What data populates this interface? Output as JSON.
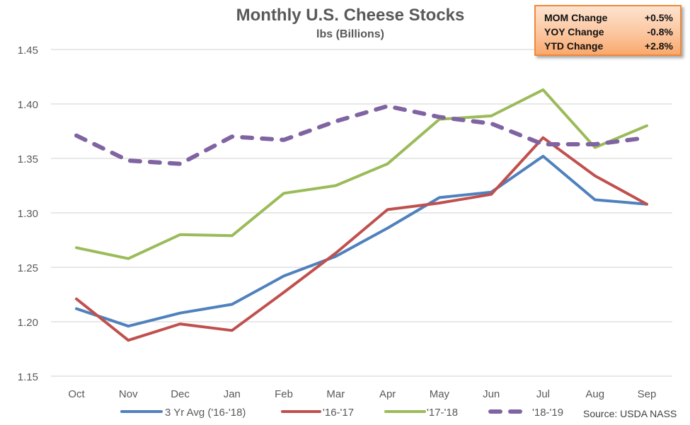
{
  "chart_data": {
    "type": "line",
    "title": "Monthly U.S. Cheese Stocks",
    "subtitle": "lbs (Billions)",
    "xlabel": "",
    "ylabel": "",
    "categories": [
      "Oct",
      "Nov",
      "Dec",
      "Jan",
      "Feb",
      "Mar",
      "Apr",
      "May",
      "Jun",
      "Jul",
      "Aug",
      "Sep"
    ],
    "ylim": [
      1.15,
      1.45
    ],
    "yticks": [
      "1.15",
      "1.20",
      "1.25",
      "1.30",
      "1.35",
      "1.40",
      "1.45"
    ],
    "grid": true,
    "legend_position": "bottom",
    "series": [
      {
        "name": "3 Yr Avg ('16-'18)",
        "color": "#4f81bd",
        "dashed": false,
        "values": [
          1.212,
          1.196,
          1.208,
          1.216,
          1.242,
          1.26,
          1.286,
          1.314,
          1.319,
          1.352,
          1.312,
          1.308
        ]
      },
      {
        "name": "'16-'17",
        "color": "#c0504d",
        "dashed": false,
        "values": [
          1.221,
          1.183,
          1.198,
          1.192,
          1.227,
          1.263,
          1.303,
          1.309,
          1.317,
          1.369,
          1.334,
          1.308
        ]
      },
      {
        "name": "'17-'18",
        "color": "#9bbb59",
        "dashed": false,
        "values": [
          1.268,
          1.258,
          1.28,
          1.279,
          1.318,
          1.325,
          1.345,
          1.386,
          1.389,
          1.413,
          1.36,
          1.38
        ]
      },
      {
        "name": "'18-'19",
        "color": "#8064a2",
        "dashed": true,
        "values": [
          1.371,
          1.348,
          1.345,
          1.37,
          1.367,
          1.384,
          1.398,
          1.388,
          1.382,
          1.363,
          1.363,
          1.369
        ]
      }
    ],
    "annotations": {
      "stats_box": [
        {
          "label": "MOM Change",
          "value": "+0.5%"
        },
        {
          "label": "YOY Change",
          "value": "-0.8%"
        },
        {
          "label": "YTD Change",
          "value": "+2.8%"
        }
      ],
      "source": "Source: USDA NASS"
    }
  }
}
